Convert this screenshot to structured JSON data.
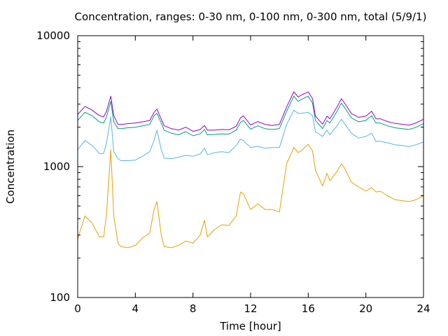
{
  "chart_data": {
    "type": "line",
    "title": "Concentration, ranges: 0-30 nm, 0-100 nm, 0-300 nm, total (5/9/1)",
    "xlabel": "Time [hour]",
    "ylabel": "Concentration",
    "xlim": [
      0,
      24
    ],
    "ylim": [
      100,
      10000
    ],
    "yscale": "log",
    "xticks": [
      "0",
      "4",
      "8",
      "12",
      "16",
      "20",
      "24"
    ],
    "yticks": [
      "100",
      "1000",
      "10000"
    ],
    "grid": false,
    "legend": "none",
    "x": [
      0,
      0.5,
      1,
      1.5,
      1.8,
      2,
      2.3,
      2.5,
      2.8,
      3,
      3.5,
      4,
      4.5,
      5,
      5.3,
      5.5,
      5.8,
      6,
      6.5,
      7,
      7.5,
      8,
      8.5,
      8.8,
      9,
      9.5,
      10,
      10.5,
      11,
      11.3,
      11.5,
      12,
      12.5,
      13,
      13.5,
      14,
      14.5,
      15,
      15.3,
      15.5,
      16,
      16.3,
      16.5,
      17,
      17.3,
      17.5,
      18,
      18.3,
      18.5,
      19,
      19.5,
      20,
      20.4,
      20.7,
      21,
      21.5,
      22,
      22.5,
      23,
      23.5,
      24
    ],
    "series": [
      {
        "color": "#e5a000",
        "values": [
          280,
          420,
          370,
          290,
          290,
          440,
          1350,
          420,
          260,
          245,
          240,
          250,
          285,
          310,
          470,
          540,
          300,
          245,
          240,
          250,
          270,
          260,
          300,
          390,
          290,
          330,
          360,
          355,
          420,
          640,
          620,
          470,
          520,
          470,
          470,
          450,
          1050,
          1400,
          1280,
          1320,
          1480,
          1320,
          940,
          710,
          890,
          780,
          920,
          1050,
          980,
          760,
          700,
          650,
          690,
          640,
          650,
          600,
          560,
          550,
          540,
          560,
          600
        ]
      },
      {
        "color": "#56b4e9",
        "values": [
          1350,
          1580,
          1450,
          1260,
          1260,
          1520,
          2400,
          1300,
          1150,
          1110,
          1110,
          1120,
          1200,
          1300,
          1580,
          1900,
          1350,
          1160,
          1150,
          1180,
          1220,
          1200,
          1250,
          1380,
          1230,
          1280,
          1300,
          1280,
          1450,
          1620,
          1580,
          1400,
          1430,
          1380,
          1400,
          1400,
          2100,
          2700,
          2550,
          2550,
          2600,
          2450,
          1850,
          1700,
          1900,
          1750,
          2050,
          2300,
          2150,
          1800,
          1650,
          1700,
          1800,
          1560,
          1560,
          1520,
          1470,
          1450,
          1420,
          1470,
          1540
        ]
      },
      {
        "color": "#009e73",
        "values": [
          2250,
          2600,
          2450,
          2200,
          2150,
          2400,
          3150,
          2200,
          1950,
          1950,
          1980,
          2000,
          2050,
          2100,
          2450,
          2550,
          2150,
          1900,
          1800,
          1750,
          1850,
          1720,
          1780,
          1920,
          1750,
          1760,
          1780,
          1770,
          1900,
          2180,
          2250,
          1930,
          2050,
          1950,
          1920,
          1950,
          2650,
          3450,
          3150,
          3250,
          3450,
          3050,
          2250,
          1950,
          2250,
          2150,
          2650,
          3050,
          2850,
          2350,
          2200,
          2250,
          2450,
          2150,
          2150,
          2050,
          1980,
          1950,
          1920,
          2000,
          2130
        ]
      },
      {
        "color": "#9400d3",
        "values": [
          2500,
          2880,
          2700,
          2450,
          2400,
          2650,
          3450,
          2450,
          2100,
          2100,
          2130,
          2150,
          2200,
          2250,
          2600,
          2750,
          2300,
          2050,
          1950,
          1900,
          2000,
          1860,
          1920,
          2060,
          1900,
          1900,
          1920,
          1910,
          2030,
          2360,
          2440,
          2080,
          2210,
          2100,
          2060,
          2100,
          2860,
          3730,
          3400,
          3510,
          3720,
          3300,
          2430,
          2110,
          2430,
          2320,
          2860,
          3300,
          3080,
          2540,
          2380,
          2430,
          2650,
          2320,
          2320,
          2210,
          2140,
          2110,
          2070,
          2160,
          2300
        ]
      }
    ]
  }
}
